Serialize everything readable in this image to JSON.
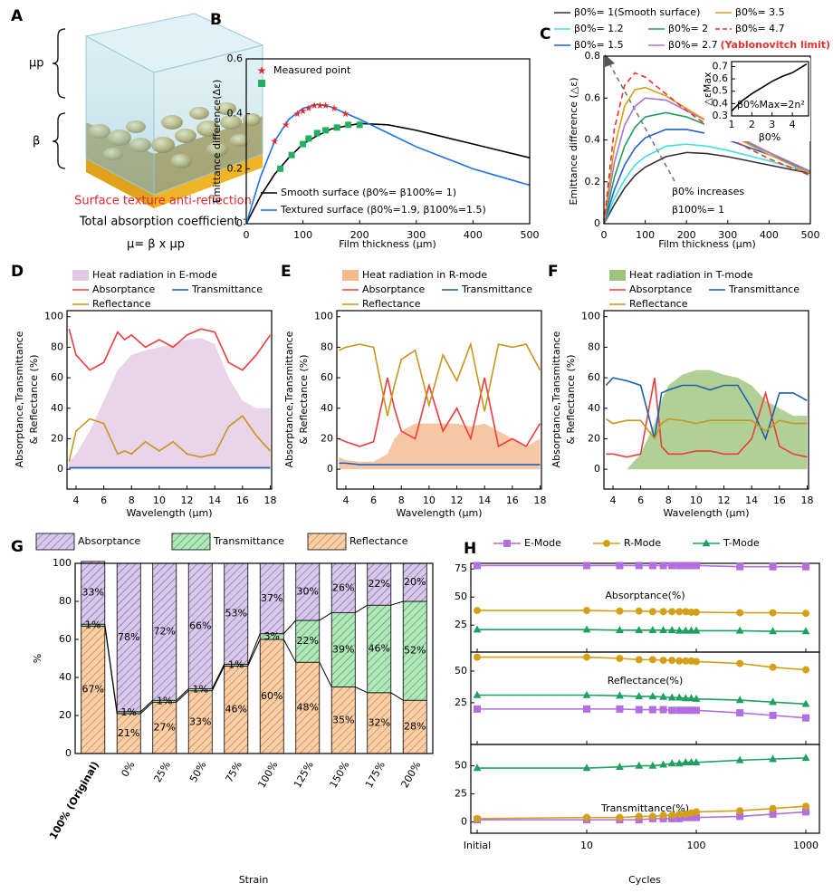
{
  "illustration": {
    "panel": "A",
    "labels": [
      "μp",
      "β"
    ],
    "caption": "Surface texture anti-reflection",
    "text": "Total absorption coefficient :",
    "formula": "μ= β x μp"
  },
  "chart_data": [
    {
      "type": "line",
      "panel": "B",
      "xlabel": "Film thickness (μm)",
      "ylabel": "Emittance difference(Δε)",
      "xlim": [
        0,
        500
      ],
      "ylim": [
        0,
        0.6
      ],
      "xticks": [
        0,
        100,
        200,
        300,
        400,
        500
      ],
      "yticks": [
        0,
        0.2,
        0.4,
        0.6
      ],
      "series": [
        {
          "name": "Smooth surface (β0%= β100%= 1)",
          "color": "#000000",
          "x": [
            0,
            25,
            50,
            75,
            100,
            125,
            150,
            200,
            250,
            300,
            350,
            400,
            450,
            500
          ],
          "values": [
            0,
            0.1,
            0.18,
            0.24,
            0.29,
            0.32,
            0.345,
            0.365,
            0.36,
            0.34,
            0.315,
            0.29,
            0.265,
            0.24
          ]
        },
        {
          "name": "Textured surface (β0%=1.9, β100%=1.5)",
          "color": "#1a73e8",
          "x": [
            0,
            25,
            50,
            75,
            100,
            125,
            150,
            200,
            250,
            300,
            350,
            400,
            450,
            500
          ],
          "values": [
            0,
            0.17,
            0.3,
            0.38,
            0.42,
            0.435,
            0.425,
            0.38,
            0.33,
            0.28,
            0.24,
            0.2,
            0.17,
            0.14
          ]
        },
        {
          "name": "Measured point",
          "kind": "scatter",
          "marker": "star",
          "color": "#e8262b",
          "x": [
            50,
            70,
            90,
            100,
            110,
            120,
            130,
            140,
            155,
            175
          ],
          "values": [
            0.3,
            0.36,
            0.4,
            0.41,
            0.42,
            0.43,
            0.43,
            0.43,
            0.42,
            0.4
          ]
        },
        {
          "kind": "scatter",
          "marker": "square",
          "color": "#22b060",
          "x": [
            60,
            80,
            100,
            110,
            125,
            140,
            160,
            180,
            200
          ],
          "values": [
            0.2,
            0.25,
            0.29,
            0.31,
            0.33,
            0.34,
            0.35,
            0.36,
            0.36
          ]
        }
      ]
    },
    {
      "type": "line",
      "panel": "C",
      "xlabel": "Film thickness (μm)",
      "ylabel": "Emittance difference (△ε)",
      "xlim": [
        0,
        500
      ],
      "ylim": [
        0,
        0.8
      ],
      "xticks": [
        0,
        100,
        200,
        300,
        400,
        500
      ],
      "yticks": [
        0,
        0.2,
        0.4,
        0.6,
        0.8
      ],
      "x": [
        0,
        25,
        50,
        75,
        100,
        150,
        200,
        250,
        300,
        400,
        500
      ],
      "series": [
        {
          "name": "β0%= 1(Smooth surface)",
          "color": "#333333",
          "values": [
            0,
            0.09,
            0.17,
            0.23,
            0.27,
            0.32,
            0.34,
            0.335,
            0.32,
            0.28,
            0.24
          ]
        },
        {
          "name": "β0%= 1.2",
          "color": "#3ee0e6",
          "values": [
            0,
            0.12,
            0.21,
            0.28,
            0.32,
            0.37,
            0.38,
            0.37,
            0.35,
            0.3,
            0.245
          ]
        },
        {
          "name": "β0%= 1.5",
          "color": "#1f5fd6",
          "values": [
            0,
            0.16,
            0.28,
            0.36,
            0.41,
            0.45,
            0.45,
            0.43,
            0.4,
            0.33,
            0.25
          ]
        },
        {
          "name": "β0%= 2",
          "color": "#1e9e5a",
          "values": [
            0,
            0.22,
            0.37,
            0.46,
            0.51,
            0.53,
            0.51,
            0.47,
            0.43,
            0.34,
            0.25
          ]
        },
        {
          "name": "β0%= 2.7",
          "color": "#b070d8",
          "values": [
            0,
            0.29,
            0.47,
            0.56,
            0.6,
            0.59,
            0.54,
            0.49,
            0.44,
            0.34,
            0.25
          ]
        },
        {
          "name": "β0%= 3.5",
          "color": "#d4a017",
          "values": [
            0,
            0.36,
            0.56,
            0.64,
            0.65,
            0.61,
            0.55,
            0.49,
            0.43,
            0.33,
            0.24
          ]
        },
        {
          "name": "β0%= 4.7",
          "color": "#e8312f",
          "dash": true,
          "values": [
            0,
            0.45,
            0.66,
            0.72,
            0.7,
            0.62,
            0.54,
            0.47,
            0.41,
            0.31,
            0.23
          ]
        }
      ],
      "annotations": [
        "β0% increases",
        "β100%= 1",
        "(Yablonovitch limit)"
      ]
    },
    {
      "type": "line",
      "xlabel": "β0%",
      "ylabel": "△εMax",
      "xlim": [
        1,
        4.8
      ],
      "ylim": [
        0.3,
        0.74
      ],
      "xticks": [
        1,
        2,
        3,
        4
      ],
      "yticks": [
        0.3,
        0.4,
        0.5,
        0.6,
        0.7
      ],
      "x": [
        1,
        1.5,
        2,
        2.5,
        3,
        3.5,
        4,
        4.7
      ],
      "series": [
        {
          "color": "#000000",
          "values": [
            0.34,
            0.42,
            0.48,
            0.53,
            0.58,
            0.62,
            0.65,
            0.72
          ]
        }
      ],
      "annotations": [
        "β0%Max=2n²"
      ]
    },
    {
      "type": "line",
      "panel": "D",
      "xlabel": "Wavelength (μm)",
      "ylabel": [
        "Absorptance,Transmittance",
        "& Reflectance (%)"
      ],
      "xlim": [
        3.35,
        18.1
      ],
      "ylim": [
        -13,
        104
      ],
      "xticks": [
        4,
        6,
        8,
        10,
        12,
        14,
        16,
        18
      ],
      "yticks": [
        0,
        20,
        40,
        60,
        80,
        100
      ],
      "x": [
        3.5,
        4,
        5,
        6,
        7,
        7.5,
        8,
        9,
        10,
        11,
        12,
        13,
        14,
        15,
        16,
        17,
        18
      ],
      "series": [
        {
          "name": "Heat radiation in E-mode",
          "kind": "area",
          "color": "#e3c9e3",
          "values": [
            5,
            10,
            25,
            45,
            65,
            70,
            75,
            78,
            80,
            82,
            85,
            86,
            82,
            60,
            45,
            40,
            40
          ]
        },
        {
          "name": "Absorptance",
          "color": "#ee3b3b",
          "values": [
            92,
            75,
            65,
            70,
            90,
            85,
            88,
            80,
            85,
            80,
            88,
            92,
            90,
            70,
            65,
            75,
            88
          ]
        },
        {
          "name": "Transmittance",
          "color": "#1f5fb0",
          "values": [
            1,
            1,
            1,
            1,
            1,
            1,
            1,
            1,
            1,
            1,
            1,
            1,
            1,
            1,
            1,
            1,
            1
          ]
        },
        {
          "name": "Reflectance",
          "color": "#c8961e",
          "values": [
            5,
            25,
            33,
            30,
            10,
            12,
            10,
            18,
            12,
            18,
            10,
            8,
            10,
            28,
            35,
            22,
            12
          ]
        }
      ]
    },
    {
      "type": "line",
      "panel": "E",
      "xlabel": "Wavelength (μm)",
      "ylabel": [
        "Absorptance,Transmittance",
        "& Reflectance (%)"
      ],
      "xlim": [
        3.35,
        18.1
      ],
      "ylim": [
        -13,
        104
      ],
      "xticks": [
        4,
        6,
        8,
        10,
        12,
        14,
        16,
        18
      ],
      "yticks": [
        0,
        20,
        40,
        60,
        80,
        100
      ],
      "x": [
        3.5,
        4,
        5,
        6,
        7,
        7.5,
        8,
        9,
        10,
        11,
        12,
        13,
        14,
        15,
        16,
        17,
        18
      ],
      "series": [
        {
          "name": "Heat radiation in R-mode",
          "kind": "area",
          "color": "#f5b98e",
          "values": [
            8,
            6,
            5,
            5,
            10,
            20,
            25,
            30,
            30,
            30,
            30,
            28,
            30,
            25,
            20,
            15,
            20
          ]
        },
        {
          "name": "Absorptance",
          "color": "#ee3b3b",
          "values": [
            20,
            18,
            15,
            18,
            60,
            40,
            25,
            20,
            55,
            25,
            40,
            20,
            60,
            15,
            20,
            15,
            30
          ]
        },
        {
          "name": "Transmittance",
          "color": "#1f5fb0",
          "values": [
            4,
            4,
            3,
            3,
            3,
            3,
            3,
            3,
            3,
            3,
            3,
            3,
            3,
            3,
            3,
            3,
            3
          ]
        },
        {
          "name": "Reflectance",
          "color": "#c8961e",
          "values": [
            78,
            80,
            82,
            80,
            35,
            55,
            72,
            78,
            42,
            75,
            58,
            82,
            38,
            82,
            80,
            82,
            65
          ]
        }
      ]
    },
    {
      "type": "line",
      "panel": "F",
      "xlabel": "Wavelength (μm)",
      "ylabel": [
        "Absorptance,Transmittance",
        "& Reflectance (%)"
      ],
      "xlim": [
        3.35,
        18.1
      ],
      "ylim": [
        -13,
        104
      ],
      "xticks": [
        4,
        6,
        8,
        10,
        12,
        14,
        16,
        18
      ],
      "yticks": [
        0,
        20,
        40,
        60,
        80,
        100
      ],
      "x": [
        3.5,
        4,
        5,
        6,
        7,
        7.5,
        8,
        9,
        10,
        11,
        12,
        13,
        14,
        15,
        16,
        17,
        18
      ],
      "series": [
        {
          "name": "Heat radiation in T-mode",
          "kind": "area",
          "color": "#9cc47a",
          "values": [
            0,
            0,
            0,
            10,
            30,
            45,
            55,
            62,
            65,
            65,
            62,
            60,
            55,
            45,
            40,
            35,
            35
          ]
        },
        {
          "name": "Absorptance",
          "color": "#ee3b3b",
          "values": [
            10,
            10,
            8,
            10,
            60,
            15,
            10,
            10,
            12,
            12,
            10,
            10,
            20,
            50,
            15,
            10,
            8
          ]
        },
        {
          "name": "Transmittance",
          "color": "#1f5fb0",
          "values": [
            55,
            60,
            58,
            55,
            20,
            50,
            52,
            55,
            55,
            52,
            55,
            55,
            40,
            20,
            50,
            50,
            45
          ]
        },
        {
          "name": "Reflectance",
          "color": "#c8961e",
          "values": [
            33,
            30,
            32,
            32,
            20,
            30,
            33,
            32,
            30,
            32,
            32,
            32,
            32,
            25,
            32,
            30,
            30
          ]
        }
      ]
    },
    {
      "type": "bar",
      "stacked": true,
      "panel": "G",
      "xlabel": "Strain",
      "ylabel": "%",
      "categories": [
        "100% (Original)",
        "0%",
        "25%",
        "50%",
        "75%",
        "100%",
        "125%",
        "150%",
        "175%",
        "200%"
      ],
      "ylim": [
        0,
        100
      ],
      "yticks": [
        0,
        20,
        40,
        60,
        80,
        100
      ],
      "series": [
        {
          "name": "Absorptance",
          "color": "#d8c8ea",
          "hatch_color": "#7a5a9e",
          "values": [
            33,
            78,
            72,
            66,
            53,
            37,
            30,
            26,
            22,
            20
          ],
          "value_labels": [
            "33%",
            "78%",
            "72%",
            "66%",
            "53%",
            "37%",
            "30%",
            "26%",
            "22%",
            "20%"
          ]
        },
        {
          "name": "Transmittance",
          "color": "#b4e6bc",
          "hatch_color": "#2e9e4e",
          "values": [
            1,
            1,
            1,
            1,
            1,
            3,
            22,
            39,
            46,
            52
          ],
          "value_labels": [
            "1%",
            "1%",
            "1%",
            "1%",
            "1%",
            "3%",
            "22%",
            "39%",
            "46%",
            "52%"
          ]
        },
        {
          "name": "Reflectance",
          "color": "#f8cfa6",
          "hatch_color": "#c0703a",
          "values": [
            67,
            21,
            27,
            33,
            46,
            60,
            48,
            35,
            32,
            28
          ],
          "value_labels": [
            "67%",
            "21%",
            "27%",
            "33%",
            "46%",
            "60%",
            "48%",
            "35%",
            "32%",
            "28%"
          ]
        }
      ]
    },
    {
      "type": "line",
      "panel": "H",
      "xlabel": "Cycles",
      "xlog": true,
      "xlim": [
        0.875,
        1330
      ],
      "xticks": [
        {
          "value": 1,
          "label": "Initial"
        },
        10,
        100,
        1000
      ],
      "x": [
        1,
        10,
        20,
        30,
        40,
        50,
        60,
        70,
        80,
        90,
        100,
        250,
        500,
        1000
      ],
      "series": [
        {
          "name": "E-Mode",
          "color": "#b36ee0",
          "marker": "square"
        },
        {
          "name": "R-Mode",
          "color": "#d4a017",
          "marker": "circle"
        },
        {
          "name": "T-Mode",
          "color": "#1ea060",
          "marker": "triangle"
        }
      ],
      "subplots": [
        {
          "title": "Absorptance(%)",
          "ylim": [
            1,
            80
          ],
          "yticks": [
            25,
            50,
            75
          ],
          "values": [
            [
              78,
              78,
              78,
              78,
              78,
              78,
              78,
              78,
              78,
              78,
              78,
              77,
              77,
              77
            ],
            [
              38,
              38,
              37.5,
              37.5,
              37,
              37,
              37,
              37,
              37,
              36.5,
              36.5,
              36,
              36,
              35.5
            ],
            [
              21,
              21,
              20.5,
              20.5,
              20.5,
              20.5,
              20.5,
              20,
              20,
              20,
              20,
              20,
              19.5,
              19.5
            ]
          ]
        },
        {
          "title": "Reflectance(%)",
          "ylim": [
            -8,
            65
          ],
          "yticks": [
            25,
            50
          ],
          "values": [
            [
              20,
              20,
              20,
              19.5,
              19.5,
              19.5,
              19,
              19,
              19,
              19,
              19,
              17,
              15,
              13
            ],
            [
              61,
              61,
              60,
              59,
              59,
              58.5,
              58.5,
              58,
              58,
              58,
              57.5,
              56,
              53,
              51
            ],
            [
              31,
              31,
              30.5,
              30,
              30,
              29.5,
              29,
              29,
              28.5,
              28.5,
              28,
              27,
              25.5,
              24
            ]
          ]
        },
        {
          "title": "Transmittance(%)",
          "ylim": [
            -10,
            69
          ],
          "yticks": [
            0,
            25,
            50
          ],
          "values": [
            [
              2,
              2,
              2,
              2,
              3,
              3,
              3,
              3,
              4,
              4,
              4,
              5,
              7,
              9
            ],
            [
              3,
              4,
              4,
              5,
              5,
              6,
              6,
              7,
              7,
              8,
              9,
              10,
              12,
              14
            ],
            [
              48,
              48,
              49,
              50,
              50,
              51,
              52,
              52,
              53,
              53,
              53,
              55,
              56,
              57
            ]
          ]
        }
      ]
    }
  ]
}
